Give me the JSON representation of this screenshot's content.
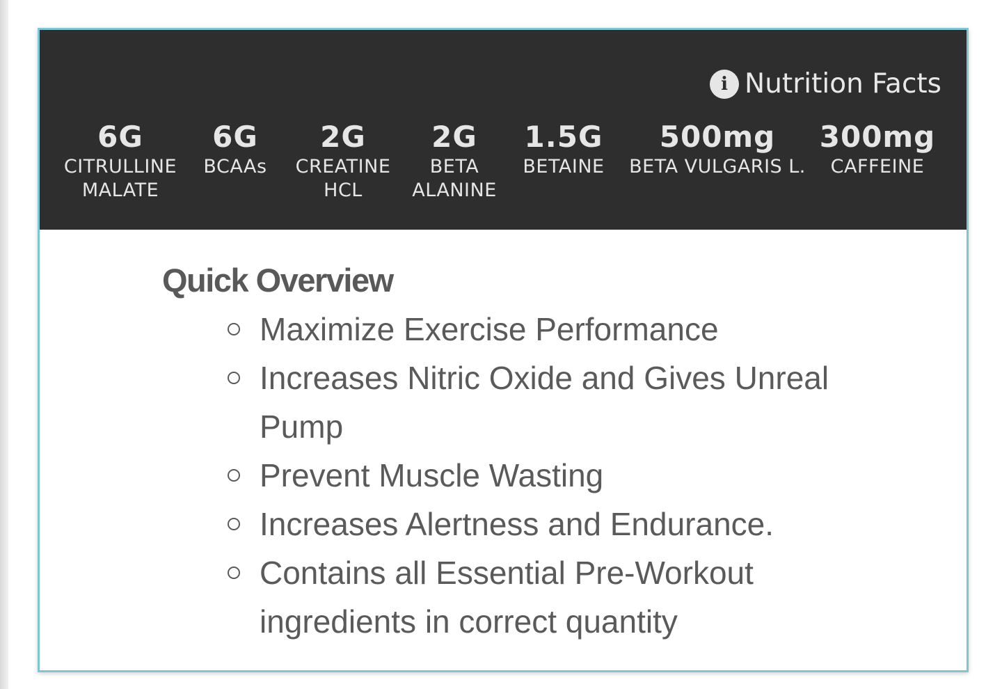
{
  "nutrition_banner": {
    "link_label": "Nutrition Facts",
    "info_icon": "info-icon",
    "ingredients": [
      {
        "amount": "6G",
        "name_line1": "CITRULLINE",
        "name_line2": "MALATE"
      },
      {
        "amount": "6G",
        "name_line1": "BCAAs",
        "name_line2": ""
      },
      {
        "amount": "2G",
        "name_line1": "CREATINE",
        "name_line2": "HCL"
      },
      {
        "amount": "2G",
        "name_line1": "BETA",
        "name_line2": "ALANINE"
      },
      {
        "amount": "1.5G",
        "name_line1": "BETAINE",
        "name_line2": ""
      },
      {
        "amount": "500mg",
        "name_line1": "BETA VULGARIS L.",
        "name_line2": ""
      },
      {
        "amount": "300mg",
        "name_line1": "CAFFEINE",
        "name_line2": ""
      }
    ]
  },
  "overview": {
    "title": "Quick Overview",
    "items": [
      "Maximize Exercise Performance",
      "Increases Nitric Oxide and Gives Unreal Pump",
      "Prevent Muscle Wasting",
      "Increases Alertness and Endurance.",
      "Contains all Essential Pre-Workout ingredients in correct quantity"
    ]
  },
  "colors": {
    "banner_bg": "#2e2e2e",
    "card_border": "#7fc6d3",
    "text": "#5a5a5a"
  }
}
